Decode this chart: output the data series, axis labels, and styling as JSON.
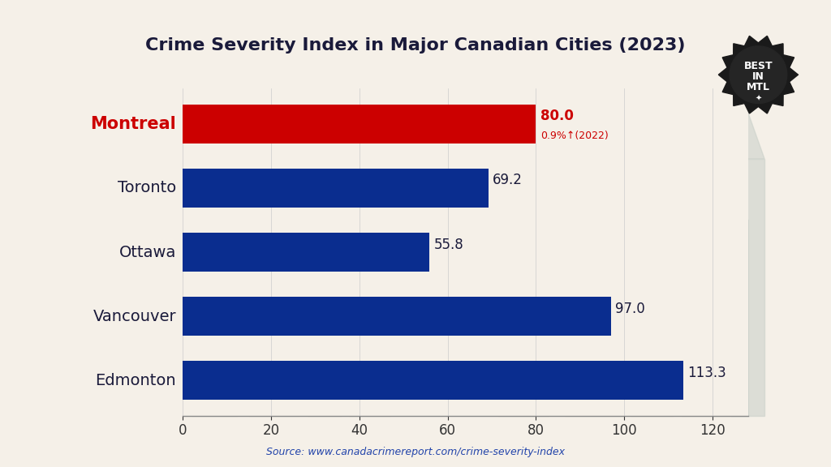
{
  "title": "Crime Severity Index in Major Canadian Cities (2023)",
  "cities": [
    "Montreal",
    "Toronto",
    "Ottawa",
    "Vancouver",
    "Edmonton"
  ],
  "values": [
    80.0,
    69.2,
    55.8,
    97.0,
    113.3
  ],
  "bar_colors": [
    "#cc0000",
    "#0a2d8f",
    "#0a2d8f",
    "#0a2d8f",
    "#0a2d8f"
  ],
  "montreal_annotation": "0.9%↑(2022)",
  "source": "Source: www.canadacrimereport.com/crime-severity-index",
  "bg_color": "#f5f0e8",
  "building_color": "#c8cfc8",
  "xlim": [
    0,
    128
  ],
  "xticks": [
    0,
    20,
    40,
    60,
    80,
    100,
    120
  ],
  "bar_height": 0.6,
  "city_label_color_montreal": "#cc0000",
  "city_label_color_others": "#1a1a3a",
  "value_label_color_montreal": "#cc0000",
  "value_label_color_others": "#1a1a3a",
  "badge_bg": "#1a1a1a",
  "badge_text_color": "#ffffff",
  "title_color": "#1a1a3a",
  "source_color": "#2244aa",
  "axis_color": "#888888"
}
